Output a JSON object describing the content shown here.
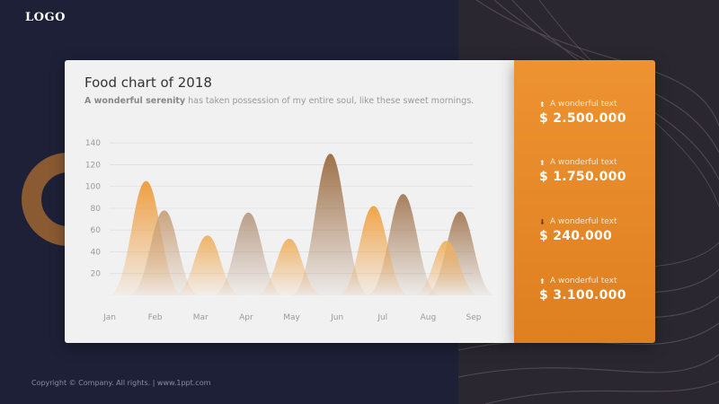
{
  "logo": "LOGO",
  "card": {
    "title": "Food chart of 2018",
    "subtitle_bold": "A wonderful serenity",
    "subtitle_rest": " has taken possession of my entire soul, like these sweet mornings."
  },
  "stats": [
    {
      "label": "A wonderful text",
      "value": "$ 2.500.000",
      "trend": "up"
    },
    {
      "label": "A wonderful text",
      "value": "$ 1.750.000",
      "trend": "up"
    },
    {
      "label": "A wonderful text",
      "value": "$ 240.000",
      "trend": "down"
    },
    {
      "label": "A wonderful text",
      "value": "$ 3.100.000",
      "trend": "up"
    }
  ],
  "footer": "Copyright © Company. All rights. | www.1ppt.com",
  "colors": {
    "background": "#1e2038",
    "accent": "#e98a2a",
    "card": "#f1f1f2",
    "ring": "#8a5a32"
  },
  "chart_data": {
    "type": "area",
    "title": "Food chart of 2018",
    "categories": [
      "Jan",
      "Feb",
      "Mar",
      "Apr",
      "May",
      "Jun",
      "Jul",
      "Aug",
      "Sep"
    ],
    "yticks": [
      20,
      40,
      60,
      80,
      100,
      120,
      140
    ],
    "ylim": [
      0,
      150
    ],
    "grid": true,
    "peaks": [
      {
        "x": 0.8,
        "value": 105,
        "color": "#ee9b3a"
      },
      {
        "x": 1.2,
        "value": 78,
        "color": "#c8a07a"
      },
      {
        "x": 2.15,
        "value": 55,
        "color": "#f0b060"
      },
      {
        "x": 3.05,
        "value": 76,
        "color": "#b89a82"
      },
      {
        "x": 3.95,
        "value": 52,
        "color": "#f0b060"
      },
      {
        "x": 4.85,
        "value": 130,
        "color": "#9a6a40"
      },
      {
        "x": 5.8,
        "value": 82,
        "color": "#f0a040"
      },
      {
        "x": 6.45,
        "value": 93,
        "color": "#a47a55"
      },
      {
        "x": 7.4,
        "value": 50,
        "color": "#f0b060"
      },
      {
        "x": 7.7,
        "value": 77,
        "color": "#a47a55"
      }
    ]
  }
}
